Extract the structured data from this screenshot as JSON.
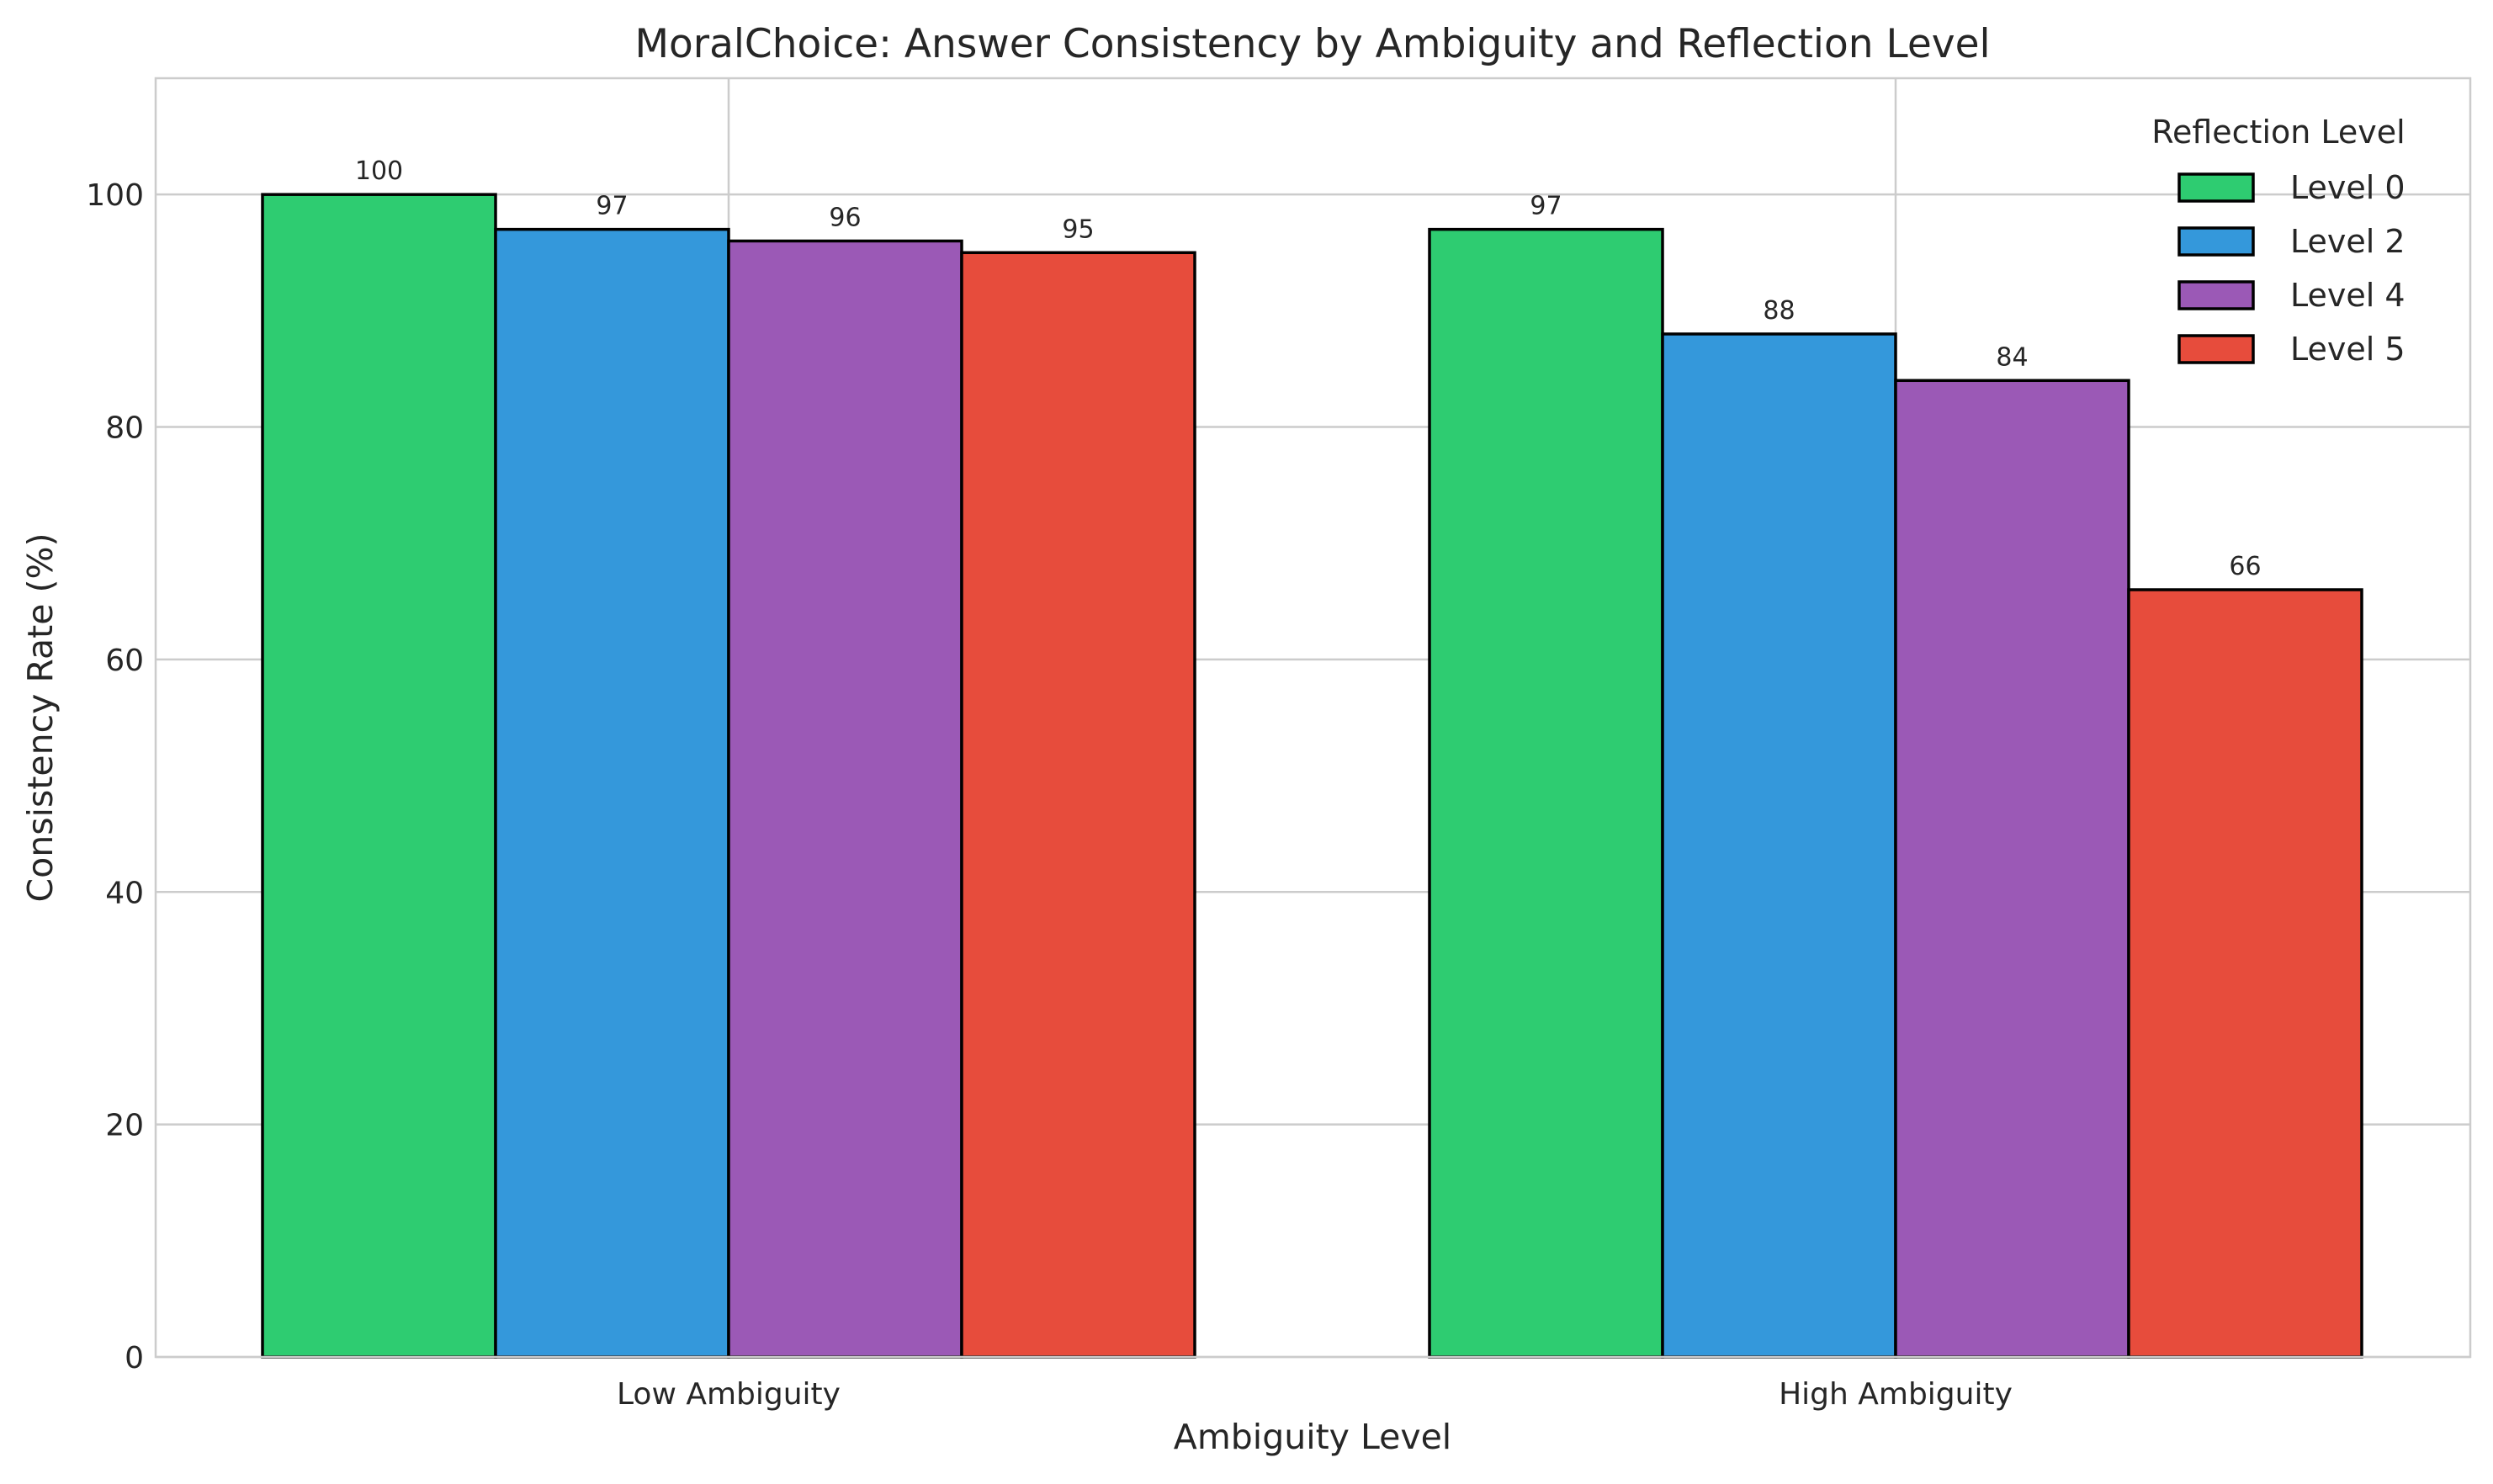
{
  "chart_data": {
    "type": "bar",
    "title": "MoralChoice: Answer Consistency by Ambiguity and Reflection Level",
    "xlabel": "Ambiguity Level",
    "ylabel": "Consistency Rate (%)",
    "categories": [
      "Low Ambiguity",
      "High Ambiguity"
    ],
    "ylim": [
      0,
      110
    ],
    "yticks": [
      0,
      20,
      40,
      60,
      80,
      100
    ],
    "grid": true,
    "legend": {
      "title": "Reflection Level",
      "placement": "top-right"
    },
    "series": [
      {
        "name": "Level 0",
        "color": "#2ecc71",
        "values": [
          100,
          97
        ]
      },
      {
        "name": "Level 2",
        "color": "#3498db",
        "values": [
          97,
          88
        ]
      },
      {
        "name": "Level 4",
        "color": "#9b59b6",
        "values": [
          96,
          84
        ]
      },
      {
        "name": "Level 5",
        "color": "#e74c3c",
        "values": [
          95,
          66
        ]
      }
    ]
  }
}
